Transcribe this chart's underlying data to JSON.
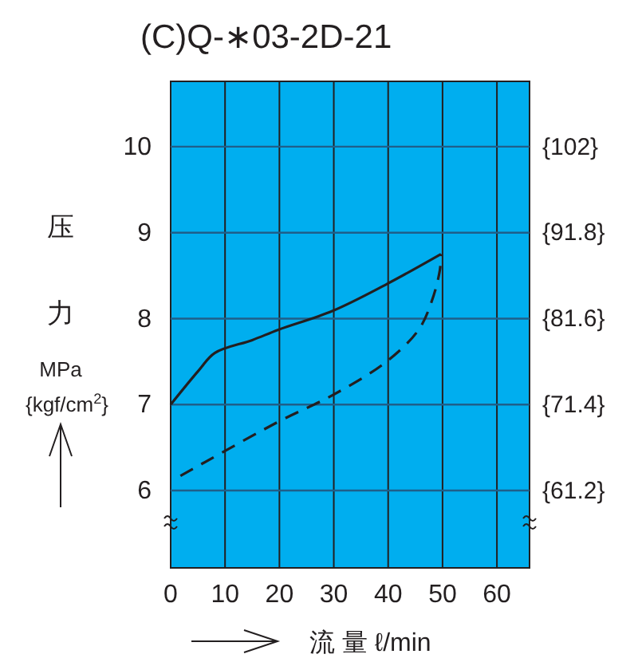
{
  "chart_data": {
    "type": "line",
    "title": "(C)Q-∗03-2D-21",
    "xlabel": "流 量 ℓ/min",
    "ylabel": "压力 MPa {kgf/cm$^{2}$}",
    "xlim": [
      0,
      66
    ],
    "xticks": [
      0,
      10,
      20,
      30,
      40,
      50,
      60
    ],
    "ylim": [
      5.1,
      10.76
    ],
    "yticks": [
      6,
      7,
      8,
      9,
      10
    ],
    "y2lim": [
      52.02,
      109.752
    ],
    "y2ticks": [
      {
        "value": 61.2,
        "label": "{61.2}"
      },
      {
        "value": 71.4,
        "label": "{71.4}"
      },
      {
        "value": 81.6,
        "label": "{81.6}"
      },
      {
        "value": 91.8,
        "label": "{91.8}"
      },
      {
        "value": 102,
        "label": "{102}"
      }
    ],
    "grid": true,
    "series": [
      {
        "color": "#231f20",
        "line_style": "solid",
        "x": [
          0,
          5.2,
          8.1,
          15,
          19.8,
          29.8,
          39.7,
          49.7
        ],
        "values": [
          7.0,
          7.4,
          7.6,
          7.75,
          7.87,
          8.09,
          8.4,
          8.75
        ]
      },
      {
        "color": "#231f20",
        "line_style": "dashed",
        "x": [
          1.8,
          19.8,
          29.8,
          39.7,
          45.6,
          48,
          49.5,
          49.7
        ],
        "values": [
          6.17,
          6.8,
          7.11,
          7.5,
          7.87,
          8.2,
          8.56,
          8.75
        ]
      }
    ]
  }
}
